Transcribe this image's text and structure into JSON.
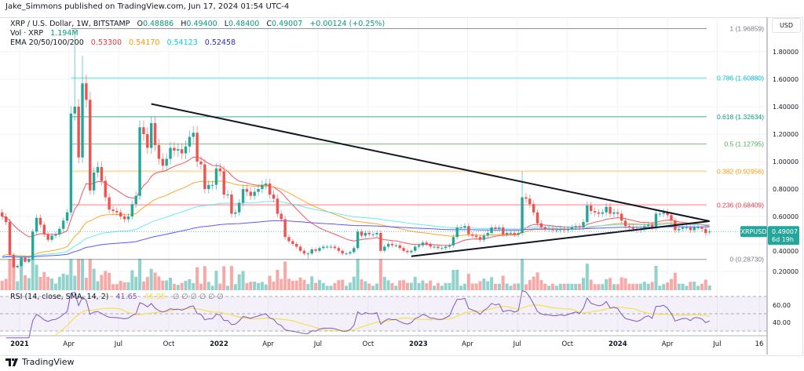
{
  "publish_line": "Jake_Simmons published on TradingView.com, Jun 17, 2024 01:54 UTC-4",
  "legend": {
    "symbol": "XRP / U.S. Dollar, 1W, BITSTAMP",
    "o_label": "O",
    "o": "0.48886",
    "h_label": "H",
    "h": "0.49400",
    "l_label": "L",
    "l": "0.48400",
    "c_label": "C",
    "c": "0.49007",
    "change": "+0.00124 (+0.25%)",
    "vol_label": "Vol · XRP",
    "vol": "1.194M",
    "ema_label": "EMA 20/50/100/200",
    "ema_values": [
      "0.53300",
      "0.54170",
      "0.54123",
      "0.52458"
    ],
    "rsi_label": "RSI (14, close, SMA, 14, 2)",
    "rsi_value": "41.65",
    "rsi_sma": "45.95",
    "rsi_extra": "∅ ∅ ∅ ∅ ∅ ∅"
  },
  "currency": "USD",
  "brand": "TradingView",
  "chart_data": {
    "type": "candlestick",
    "symbol": "XRPUSD",
    "interval": "1W",
    "start_week": "2020-11-30",
    "closes": [
      0.6,
      0.56,
      0.32,
      0.23,
      0.24,
      0.3,
      0.27,
      0.29,
      0.49,
      0.59,
      0.54,
      0.47,
      0.43,
      0.46,
      0.47,
      0.51,
      0.57,
      0.63,
      1.35,
      1.4,
      1.03,
      1.57,
      1.45,
      0.79,
      0.92,
      0.96,
      0.86,
      0.74,
      0.65,
      0.64,
      0.63,
      0.6,
      0.58,
      0.6,
      0.69,
      0.75,
      1.25,
      1.2,
      1.1,
      1.28,
      1.12,
      1.02,
      0.97,
      1.02,
      1.1,
      1.08,
      1.09,
      1.06,
      1.11,
      1.18,
      1.21,
      1.0,
      0.98,
      0.8,
      0.83,
      0.83,
      0.95,
      0.93,
      0.76,
      0.76,
      0.62,
      0.63,
      0.7,
      0.8,
      0.78,
      0.75,
      0.78,
      0.8,
      0.83,
      0.84,
      0.76,
      0.73,
      0.62,
      0.58,
      0.45,
      0.42,
      0.4,
      0.38,
      0.35,
      0.33,
      0.33,
      0.36,
      0.35,
      0.37,
      0.38,
      0.38,
      0.38,
      0.37,
      0.35,
      0.33,
      0.33,
      0.34,
      0.37,
      0.49,
      0.46,
      0.48,
      0.47,
      0.47,
      0.48,
      0.35,
      0.38,
      0.4,
      0.39,
      0.39,
      0.37,
      0.35,
      0.34,
      0.35,
      0.38,
      0.39,
      0.41,
      0.4,
      0.38,
      0.38,
      0.37,
      0.37,
      0.38,
      0.39,
      0.45,
      0.52,
      0.52,
      0.53,
      0.47,
      0.46,
      0.45,
      0.43,
      0.46,
      0.48,
      0.52,
      0.51,
      0.52,
      0.47,
      0.48,
      0.48,
      0.47,
      0.48,
      0.74,
      0.73,
      0.69,
      0.63,
      0.55,
      0.52,
      0.51,
      0.51,
      0.5,
      0.5,
      0.51,
      0.5,
      0.51,
      0.52,
      0.53,
      0.52,
      0.56,
      0.68,
      0.64,
      0.63,
      0.62,
      0.63,
      0.67,
      0.62,
      0.63,
      0.62,
      0.57,
      0.53,
      0.52,
      0.51,
      0.5,
      0.51,
      0.53,
      0.54,
      0.52,
      0.62,
      0.62,
      0.63,
      0.61,
      0.57,
      0.5,
      0.51,
      0.52,
      0.52,
      0.5,
      0.52,
      0.52,
      0.51,
      0.48,
      0.49007
    ],
    "last_open": 0.48886,
    "extreme_wicks": [
      {
        "date": "2021-04-12",
        "high": 1.96859
      },
      {
        "date": "2021-04-26",
        "high": 1.77
      },
      {
        "date": "2023-07-10",
        "high": 0.93
      },
      {
        "date": "2022-06-13",
        "low": 0.2873
      }
    ],
    "ema_periods": [
      20,
      50,
      100,
      200
    ],
    "ema_colors": [
      "#f23645",
      "#ff9800",
      "#4de8f5",
      "#3d3dff"
    ],
    "up_color": "#26a69a",
    "down_color": "#ef5350",
    "fib_levels": [
      {
        "ratio": "1",
        "price": 1.96859,
        "label": "1 (1.96859)",
        "color": "#787b86"
      },
      {
        "ratio": "0.786",
        "price": 1.6088,
        "label": "0.786 (1.60880)",
        "color": "#00bcd4"
      },
      {
        "ratio": "0.618",
        "price": 1.32634,
        "label": "0.618 (1.32634)",
        "color": "#089981"
      },
      {
        "ratio": "0.5",
        "price": 1.12795,
        "label": "0.5 (1.12795)",
        "color": "#4caf50"
      },
      {
        "ratio": "0.382",
        "price": 0.92956,
        "label": "0.382 (0.92956)",
        "color": "#ff9800"
      },
      {
        "ratio": "0.236",
        "price": 0.68409,
        "label": "0.236 (0.68409)",
        "color": "#f23645"
      },
      {
        "ratio": "0",
        "price": 0.2873,
        "label": "0 (0.28730)",
        "color": "#787b86"
      }
    ],
    "fib_start": "2021-04-05",
    "trendlines": [
      {
        "from": [
          "2021-08-30",
          1.42
        ],
        "to": [
          "2024-06-17",
          0.566
        ]
      },
      {
        "from": [
          "2022-12-19",
          0.31
        ],
        "to": [
          "2024-06-17",
          0.566
        ]
      }
    ],
    "price_axis": {
      "ticks": [
        "1.80000",
        "1.60000",
        "1.40000",
        "1.20000",
        "1.00000",
        "0.80000",
        "0.60000",
        "0.40000",
        "0.20000"
      ],
      "range": [
        0.1,
        2.0
      ]
    },
    "rsi_axis": {
      "ticks": [
        "60.00",
        "40.00"
      ],
      "bands": [
        70,
        50,
        30
      ]
    },
    "time_axis": [
      {
        "label": "2021",
        "date": "2021-01-01"
      },
      {
        "label": "Apr",
        "date": "2021-04-01"
      },
      {
        "label": "Jul",
        "date": "2021-07-01"
      },
      {
        "label": "Oct",
        "date": "2021-10-01"
      },
      {
        "label": "2022",
        "date": "2022-01-01"
      },
      {
        "label": "Apr",
        "date": "2022-04-01"
      },
      {
        "label": "Jul",
        "date": "2022-07-01"
      },
      {
        "label": "Oct",
        "date": "2022-10-01"
      },
      {
        "label": "2023",
        "date": "2023-01-01"
      },
      {
        "label": "Apr",
        "date": "2023-04-01"
      },
      {
        "label": "Jul",
        "date": "2023-07-01"
      },
      {
        "label": "Oct",
        "date": "2023-10-01"
      },
      {
        "label": "2024",
        "date": "2024-01-01"
      },
      {
        "label": "Apr",
        "date": "2024-04-01"
      },
      {
        "label": "Jul",
        "date": "2024-07-01"
      },
      {
        "label": "16",
        "date": "2024-09-16"
      }
    ],
    "last_price_label": {
      "symbol": "XRPUSD",
      "price": "0.49007",
      "countdown": "6d 19h",
      "color": "#26a69a"
    },
    "grid": true
  }
}
